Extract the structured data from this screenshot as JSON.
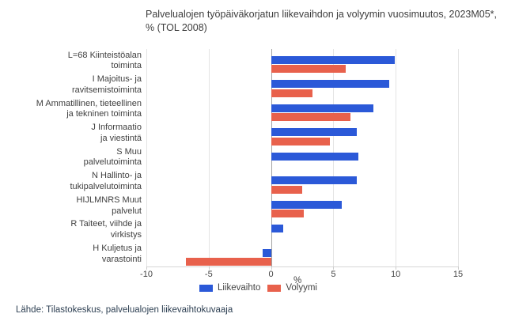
{
  "title_lines": [
    "Palvelualojen työpäiväkorjatun liikevaihdon ja volyymin vuosimuutos, 2023M05*,",
    "% (TOL 2008)"
  ],
  "footer_source": "Lähde: Tilastokeskus, palvelualojen liikevaihtokuvaaja",
  "colors": {
    "liikevaihto": "#2b59d8",
    "volyymi": "#e8614c",
    "gridline": "#e4e4e4",
    "zero_line": "#a3a3a3",
    "title_text": "#3d3d3d",
    "label_text": "#404040",
    "source_text": "#2e4053"
  },
  "chart_data": {
    "type": "bar",
    "orientation": "horizontal",
    "title": "Palvelualojen työpäiväkorjatun liikevaihdon ja volyymin vuosimuutos, 2023M05*, % (TOL 2008)",
    "xlabel": "%",
    "xlim": [
      -10,
      15
    ],
    "xticks": [
      -10,
      -5,
      0,
      5,
      10,
      15
    ],
    "grid": true,
    "legend_position": "bottom",
    "categories": [
      "L=68 Kiinteistöalan\ntoiminta",
      "I Majoitus- ja\nravitsemistoiminta",
      "M Ammatillinen, tieteellinen\nja tekninen toiminta",
      "J Informaatio\nja viestintä",
      "S Muu\npalvelutoiminta",
      "N Hallinto- ja\ntukipalvelutoiminta",
      "HIJLMNRS Muut\npalvelut",
      "R Taiteet, viihde ja\nvirkistys",
      "H Kuljetus ja\nvarastointi"
    ],
    "series": [
      {
        "name": "Liikevaihto",
        "color": "#2b59d8",
        "values": [
          9.9,
          9.5,
          8.2,
          6.9,
          7.0,
          6.9,
          5.7,
          1.0,
          -0.7
        ]
      },
      {
        "name": "Volyymi",
        "color": "#e8614c",
        "values": [
          6.0,
          3.3,
          6.4,
          4.7,
          null,
          2.5,
          2.6,
          null,
          -6.8
        ]
      }
    ]
  }
}
